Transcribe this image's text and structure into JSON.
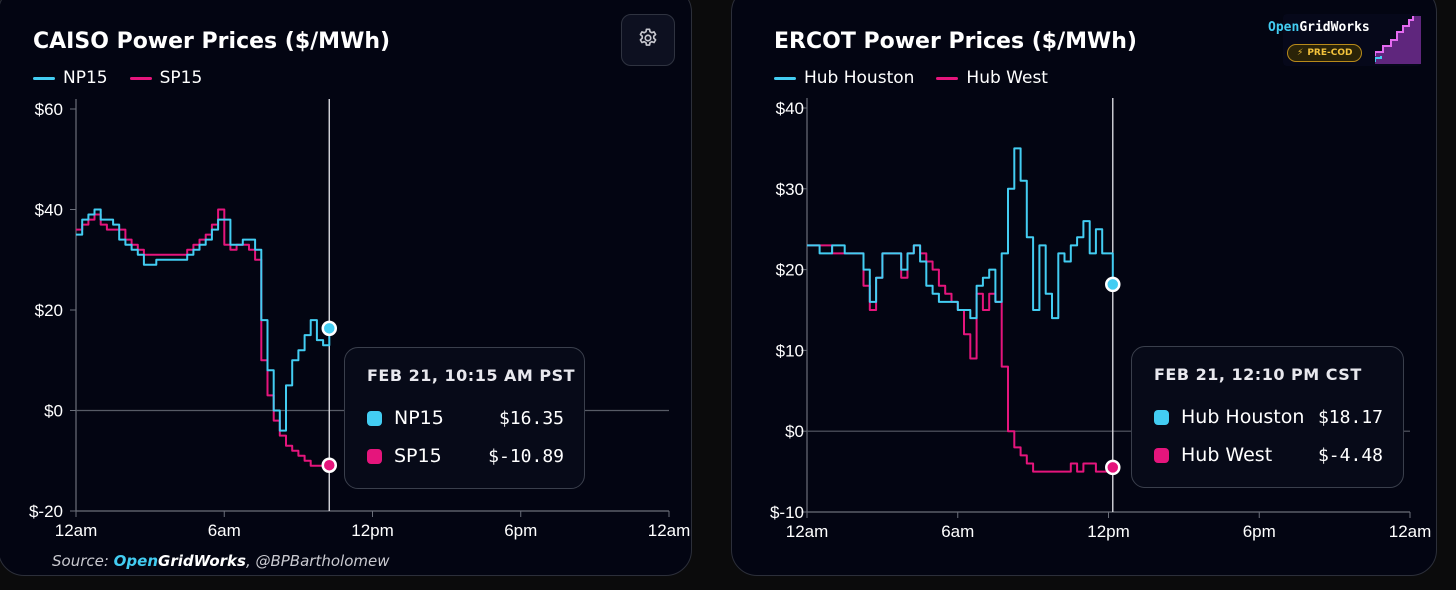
{
  "source": {
    "prefix": "Source: ",
    "brand_open": "Open",
    "brand_grid": "GridWorks",
    "suffix": ", @BPBartholomew"
  },
  "logo": {
    "brand_open": "Open",
    "brand_grid": "GridWorks",
    "badge": "PRE-COD",
    "badge_icon": "lightning-icon",
    "graph_icon": "sparkline-icon"
  },
  "settings": {
    "icon": "gear-icon"
  },
  "chart_data": [
    {
      "type": "line",
      "title": "CAISO Power Prices ($/MWh)",
      "x_ticks": [
        "12am",
        "6am",
        "12pm",
        "6pm",
        "12am"
      ],
      "xlim_hours": [
        0,
        24
      ],
      "y_ticks": [
        "$60",
        "$40",
        "$20",
        "$0",
        "$-20"
      ],
      "ylim": [
        -20,
        60
      ],
      "legend_position": "top-left",
      "crosshair_hour": 10.25,
      "series": [
        {
          "name": "NP15",
          "color": "#43cdf2",
          "x": [
            0,
            0.25,
            0.5,
            0.75,
            1,
            1.25,
            1.5,
            1.75,
            2,
            2.25,
            2.5,
            2.75,
            3,
            3.25,
            3.5,
            3.75,
            4,
            4.25,
            4.5,
            4.75,
            5,
            5.25,
            5.5,
            5.75,
            6,
            6.25,
            6.5,
            6.75,
            7,
            7.25,
            7.5,
            7.75,
            8,
            8.25,
            8.5,
            8.75,
            9,
            9.25,
            9.5,
            9.75,
            10,
            10.25
          ],
          "y": [
            35,
            38,
            39,
            40,
            38,
            38,
            37,
            34,
            33,
            32,
            31,
            29,
            29,
            30,
            30,
            30,
            30,
            30,
            31,
            32,
            33,
            34,
            36,
            38,
            38,
            33,
            33,
            34,
            34,
            32,
            18,
            8,
            0,
            -4,
            5,
            10,
            12,
            15,
            18,
            14,
            13,
            16.35
          ]
        },
        {
          "name": "SP15",
          "color": "#e5157c",
          "x": [
            0,
            0.25,
            0.5,
            0.75,
            1,
            1.25,
            1.5,
            1.75,
            2,
            2.25,
            2.5,
            2.75,
            3,
            3.25,
            3.5,
            3.75,
            4,
            4.25,
            4.5,
            4.75,
            5,
            5.25,
            5.5,
            5.75,
            6,
            6.25,
            6.5,
            6.75,
            7,
            7.25,
            7.5,
            7.75,
            8,
            8.25,
            8.5,
            8.75,
            9,
            9.25,
            9.5,
            9.75,
            10,
            10.25
          ],
          "y": [
            36,
            37,
            38,
            39,
            37,
            36,
            36,
            36,
            34,
            33,
            32,
            31,
            31,
            31,
            31,
            31,
            31,
            31,
            32,
            33,
            34,
            35,
            37,
            40,
            33,
            32,
            33,
            33,
            32,
            30,
            10,
            3,
            -2,
            -5,
            -7,
            -8,
            -9,
            -10,
            -11,
            -11,
            -11,
            -10.89
          ]
        }
      ],
      "tooltip": {
        "time": "FEB 21, 10:15 AM PST",
        "rows": [
          {
            "name": "NP15",
            "value": "$16.35"
          },
          {
            "name": "SP15",
            "value": "$-10.89"
          }
        ]
      }
    },
    {
      "type": "line",
      "title": "ERCOT Power Prices ($/MWh)",
      "x_ticks": [
        "12am",
        "6am",
        "12pm",
        "6pm",
        "12am"
      ],
      "xlim_hours": [
        0,
        24
      ],
      "y_ticks": [
        "$40",
        "$30",
        "$20",
        "$10",
        "$0",
        "$-10"
      ],
      "ylim": [
        -10,
        40
      ],
      "legend_position": "top-left",
      "crosshair_hour": 12.17,
      "series": [
        {
          "name": "Hub Houston",
          "color": "#43cdf2",
          "x": [
            0,
            0.5,
            1,
            1.5,
            2,
            2.25,
            2.5,
            2.75,
            3,
            3.25,
            3.5,
            3.75,
            4,
            4.25,
            4.5,
            4.75,
            5,
            5.25,
            5.5,
            5.75,
            6,
            6.25,
            6.5,
            6.75,
            7,
            7.25,
            7.5,
            7.75,
            8,
            8.25,
            8.5,
            8.75,
            9,
            9.25,
            9.5,
            9.75,
            10,
            10.25,
            10.5,
            10.75,
            11,
            11.25,
            11.5,
            11.75,
            12,
            12.17
          ],
          "y": [
            23,
            22,
            23,
            22,
            22,
            20,
            16,
            19,
            22,
            22,
            22,
            20,
            22,
            23,
            21,
            18,
            17,
            16,
            16,
            16,
            15,
            15,
            14,
            18,
            19,
            20,
            16,
            22,
            30,
            35,
            31,
            24,
            15,
            23,
            17,
            14,
            22,
            21,
            23,
            24,
            26,
            22,
            25,
            22,
            22,
            18.17
          ]
        },
        {
          "name": "Hub West",
          "color": "#e5157c",
          "x": [
            0,
            0.5,
            1,
            1.5,
            2,
            2.25,
            2.5,
            2.75,
            3,
            3.25,
            3.5,
            3.75,
            4,
            4.25,
            4.5,
            4.75,
            5,
            5.25,
            5.5,
            5.75,
            6,
            6.25,
            6.5,
            6.75,
            7,
            7.25,
            7.5,
            7.75,
            8,
            8.25,
            8.5,
            8.75,
            9,
            9.25,
            9.5,
            9.75,
            10,
            10.25,
            10.5,
            10.75,
            11,
            11.25,
            11.5,
            11.75,
            12,
            12.17
          ],
          "y": [
            23,
            23,
            22,
            22,
            22,
            18,
            15,
            19,
            22,
            22,
            22,
            19,
            22,
            23,
            22,
            21,
            20,
            18,
            17,
            16,
            15,
            12,
            9,
            17,
            15,
            17,
            16,
            8,
            0,
            -2,
            -3,
            -4,
            -5,
            -5,
            -5,
            -5,
            -5,
            -5,
            -4,
            -5,
            -4,
            -4,
            -5,
            -5,
            -4,
            -4.48
          ]
        }
      ],
      "tooltip": {
        "time": "FEB 21, 12:10 PM CST",
        "rows": [
          {
            "name": "Hub Houston",
            "value": "$18.17"
          },
          {
            "name": "Hub West",
            "value": "$-4.48"
          }
        ]
      }
    }
  ]
}
